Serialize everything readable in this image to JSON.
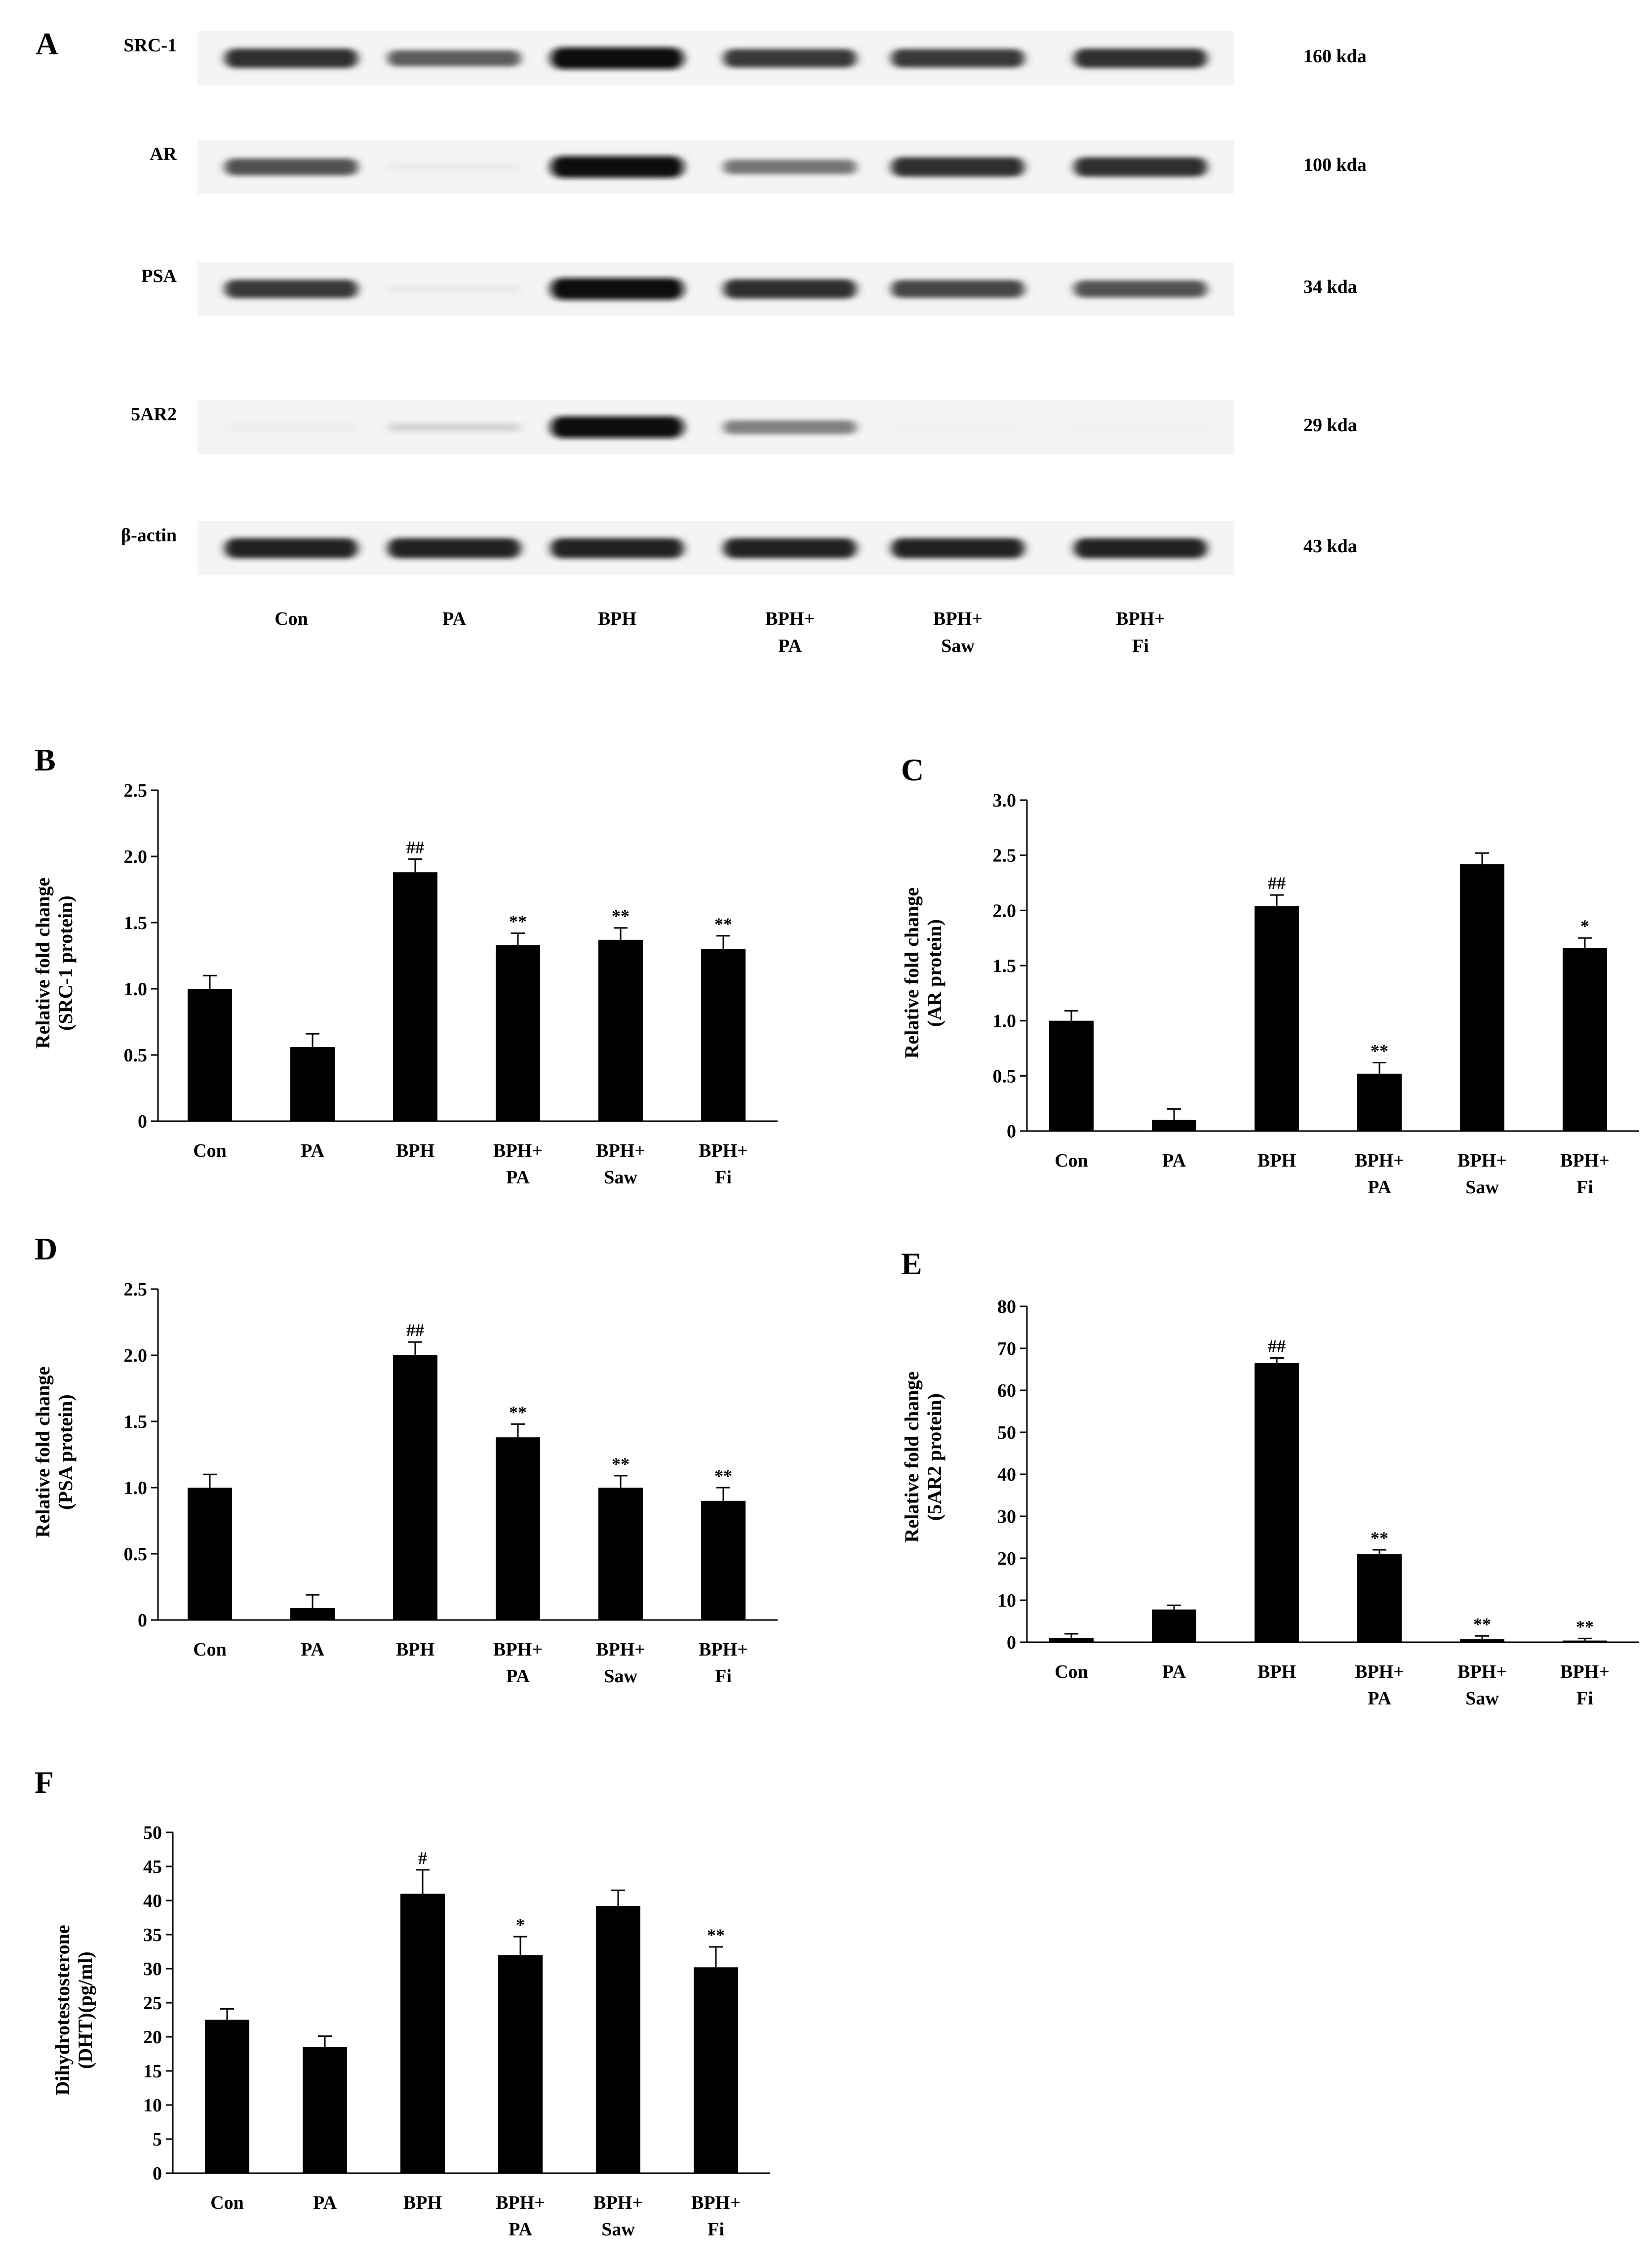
{
  "blot": {
    "panel_letter": "A",
    "proteins": [
      {
        "name": "SRC-1",
        "size": "160 kda",
        "intensity": [
          0.85,
          0.65,
          1.0,
          0.8,
          0.8,
          0.85
        ]
      },
      {
        "name": "AR",
        "size": "100 kda",
        "intensity": [
          0.7,
          0.05,
          1.0,
          0.55,
          0.85,
          0.85
        ]
      },
      {
        "name": "PSA",
        "size": "34 kda",
        "intensity": [
          0.8,
          0.06,
          1.0,
          0.85,
          0.75,
          0.7
        ]
      },
      {
        "name": "5AR2",
        "size": "29 kda",
        "intensity": [
          0.04,
          0.15,
          1.0,
          0.5,
          0.02,
          0.03
        ]
      },
      {
        "name": "β-actin",
        "size": "43 kda",
        "intensity": [
          0.9,
          0.9,
          0.9,
          0.9,
          0.9,
          0.9
        ]
      }
    ],
    "lanes": [
      [
        "Con"
      ],
      [
        "PA"
      ],
      [
        "BPH"
      ],
      [
        "BPH+",
        "PA"
      ],
      [
        "BPH+",
        "Saw"
      ],
      [
        "BPH+",
        "Fi"
      ]
    ]
  },
  "chart_data": [
    {
      "panel": "B",
      "type": "bar",
      "categories": [
        [
          "Con"
        ],
        [
          "PA"
        ],
        [
          "BPH"
        ],
        [
          "BPH+",
          "PA"
        ],
        [
          "BPH+",
          "Saw"
        ],
        [
          "BPH+",
          "Fi"
        ]
      ],
      "values": [
        1.0,
        0.56,
        1.88,
        1.33,
        1.37,
        1.3
      ],
      "errors": [
        0.1,
        0.1,
        0.1,
        0.09,
        0.09,
        0.1
      ],
      "annotations": [
        "",
        "",
        "##",
        "**",
        "**",
        "**"
      ],
      "ylabel": [
        "Relative fold change",
        "(SRC-1 protein)"
      ],
      "ylim": [
        0,
        2.5
      ],
      "yticks": [
        "0",
        "0.5",
        "1.0",
        "1.5",
        "2.0",
        "2.5"
      ]
    },
    {
      "panel": "C",
      "type": "bar",
      "categories": [
        [
          "Con"
        ],
        [
          "PA"
        ],
        [
          "BPH"
        ],
        [
          "BPH+",
          "PA"
        ],
        [
          "BPH+",
          "Saw"
        ],
        [
          "BPH+",
          "Fi"
        ]
      ],
      "values": [
        1.0,
        0.1,
        2.04,
        0.52,
        2.42,
        1.66
      ],
      "errors": [
        0.09,
        0.1,
        0.1,
        0.1,
        0.1,
        0.09
      ],
      "annotations": [
        "",
        "",
        "##",
        "**",
        "",
        "*"
      ],
      "ylabel": [
        "Relative fold change",
        "(AR protein)"
      ],
      "ylim": [
        0,
        3.0
      ],
      "yticks": [
        "0",
        "0.5",
        "1.0",
        "1.5",
        "2.0",
        "2.5",
        "3.0"
      ]
    },
    {
      "panel": "D",
      "type": "bar",
      "categories": [
        [
          "Con"
        ],
        [
          "PA"
        ],
        [
          "BPH"
        ],
        [
          "BPH+",
          "PA"
        ],
        [
          "BPH+",
          "Saw"
        ],
        [
          "BPH+",
          "Fi"
        ]
      ],
      "values": [
        1.0,
        0.09,
        2.0,
        1.38,
        1.0,
        0.9
      ],
      "errors": [
        0.1,
        0.1,
        0.1,
        0.1,
        0.09,
        0.1
      ],
      "annotations": [
        "",
        "",
        "##",
        "**",
        "**",
        "**"
      ],
      "ylabel": [
        "Relative fold change",
        "(PSA protein)"
      ],
      "ylim": [
        0,
        2.5
      ],
      "yticks": [
        "0",
        "0.5",
        "1.0",
        "1.5",
        "2.0",
        "2.5"
      ]
    },
    {
      "panel": "E",
      "type": "bar",
      "categories": [
        [
          "Con"
        ],
        [
          "PA"
        ],
        [
          "BPH"
        ],
        [
          "BPH+",
          "PA"
        ],
        [
          "BPH+",
          "Saw"
        ],
        [
          "BPH+",
          "Fi"
        ]
      ],
      "values": [
        1.0,
        7.8,
        66.5,
        21.0,
        0.7,
        0.4
      ],
      "errors": [
        1.0,
        1.0,
        1.2,
        1.0,
        0.8,
        0.5
      ],
      "annotations": [
        "",
        "",
        "##",
        "**",
        "**",
        "**"
      ],
      "ylabel": [
        "Relative fold change",
        "(5AR2 protein)"
      ],
      "ylim": [
        0,
        80
      ],
      "yticks": [
        "0",
        "10",
        "20",
        "30",
        "40",
        "50",
        "60",
        "70",
        "80"
      ]
    },
    {
      "panel": "F",
      "type": "bar",
      "categories": [
        [
          "Con"
        ],
        [
          "PA"
        ],
        [
          "BPH"
        ],
        [
          "BPH+",
          "PA"
        ],
        [
          "BPH+",
          "Saw"
        ],
        [
          "BPH+",
          "Fi"
        ]
      ],
      "values": [
        22.5,
        18.5,
        41.0,
        32.0,
        39.2,
        30.2
      ],
      "errors": [
        1.6,
        1.6,
        3.5,
        2.7,
        2.3,
        3.0
      ],
      "annotations": [
        "",
        "",
        "#",
        "*",
        "",
        "**"
      ],
      "ylabel": [
        "Dihydrotestosterone",
        "(DHT)(pg/ml)"
      ],
      "ylim": [
        0,
        50
      ],
      "yticks": [
        "0",
        "5",
        "10",
        "15",
        "20",
        "25",
        "30",
        "35",
        "40",
        "45",
        "50"
      ]
    }
  ]
}
